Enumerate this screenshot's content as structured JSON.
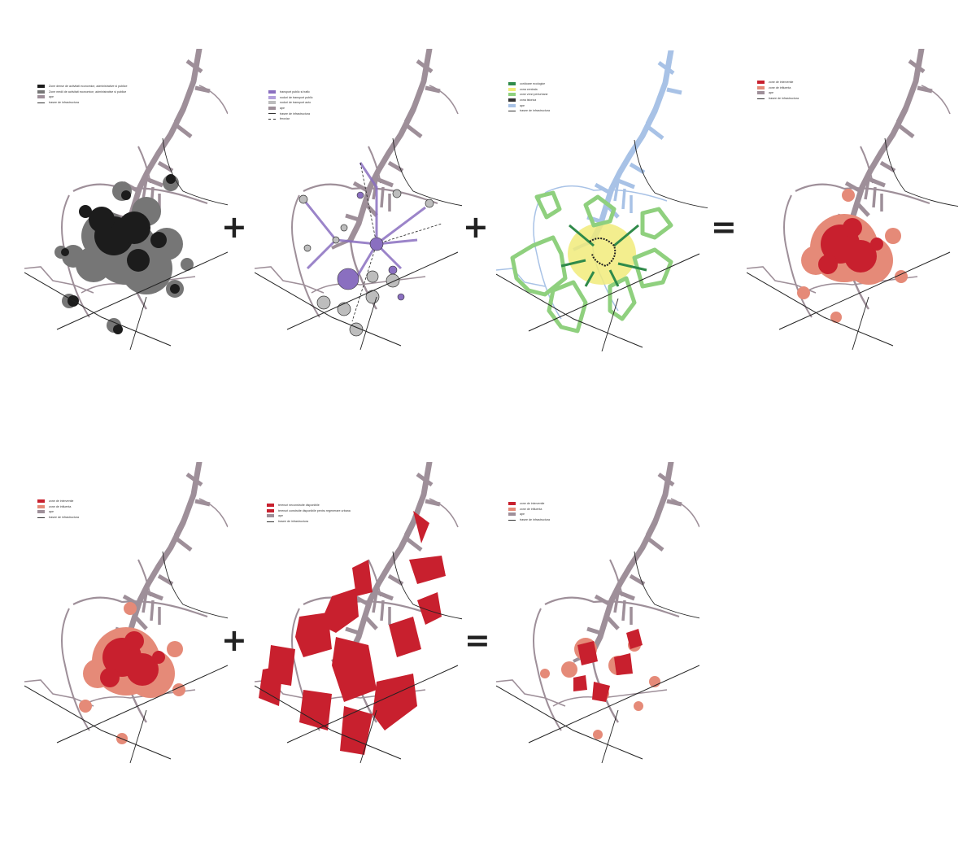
{
  "colors": {
    "base_map": "#9e8f99",
    "road": "#222222",
    "dense_black": "#1c1c1c",
    "mid_grey": "#767676",
    "purple": "#8a6fc0",
    "blue": "#a8c2e6",
    "green": "#4fa74a",
    "yellow": "#f1eb7a",
    "red": "#c8202e",
    "salmon": "#e58a78"
  },
  "panels": [
    {
      "name": "density-map",
      "legend": [
        {
          "swatch": "#1c1c1c",
          "label": "Zone dense de activitati economice, administrative si publice"
        },
        {
          "swatch": "#767676",
          "label": "Zone medii de activitati economice, administrative si publice"
        },
        {
          "swatch": "#9e8f99",
          "label": "ape"
        },
        {
          "line": "solid",
          "label": "trasee de infrastructura"
        }
      ]
    },
    {
      "name": "transport-map",
      "legend": [
        {
          "swatch": "#8a6fc0",
          "label": "transport public si trafic"
        },
        {
          "swatch": "#b3a0dc",
          "label": "noduri de transport public"
        },
        {
          "swatch": "#bdbdbd",
          "label": "noduri de transport auto"
        },
        {
          "swatch": "#9e8f99",
          "label": "ape"
        },
        {
          "line": "solid",
          "label": "trasee de infrastructura"
        },
        {
          "line": "dashed",
          "label": "feroviar"
        }
      ]
    },
    {
      "name": "green-map",
      "legend": [
        {
          "swatch": "#2f8a4a",
          "label": "coridoare ecologice"
        },
        {
          "swatch": "#f1eb7a",
          "label": "zona centrala"
        },
        {
          "swatch": "#8fd07e",
          "label": "zone verzi periurbane"
        },
        {
          "swatch": "#333333",
          "label": "zona istorica"
        },
        {
          "swatch": "#a8c2e6",
          "label": "ape"
        },
        {
          "line": "solid",
          "label": "trasee de infrastructura"
        }
      ]
    },
    {
      "name": "result-map-1",
      "legend": [
        {
          "swatch": "#c8202e",
          "label": "zone de interventie"
        },
        {
          "swatch": "#e58a78",
          "label": "zone de influenta"
        },
        {
          "swatch": "#9e8f99",
          "label": "ape"
        },
        {
          "line": "solid",
          "label": "trasee de infrastructura"
        }
      ]
    },
    {
      "name": "result-map-copy",
      "legend": [
        {
          "swatch": "#c8202e",
          "label": "zone de interventie"
        },
        {
          "swatch": "#e58a78",
          "label": "zone de influenta"
        },
        {
          "swatch": "#9e8f99",
          "label": "ape"
        },
        {
          "line": "solid",
          "label": "trasee de infrastructura"
        }
      ]
    },
    {
      "name": "vacant-land-map",
      "legend": [
        {
          "swatch": "#c8202e",
          "label": "terenuri neconstruite disponibile"
        },
        {
          "swatch": "#c8202e",
          "label": "terenuri construite disponibile pentru regenerare urbana"
        },
        {
          "swatch": "#9e8f99",
          "label": "ape"
        },
        {
          "line": "solid",
          "label": "trasee de infrastructura"
        }
      ]
    },
    {
      "name": "final-map",
      "legend": [
        {
          "swatch": "#c8202e",
          "label": "zone de interventie"
        },
        {
          "swatch": "#e58a78",
          "label": "zone de influenta"
        },
        {
          "swatch": "#9e8f99",
          "label": "ape"
        },
        {
          "line": "solid",
          "label": "trasee de infrastructura"
        }
      ]
    }
  ],
  "operators": {
    "plus": "+",
    "equals": "="
  }
}
